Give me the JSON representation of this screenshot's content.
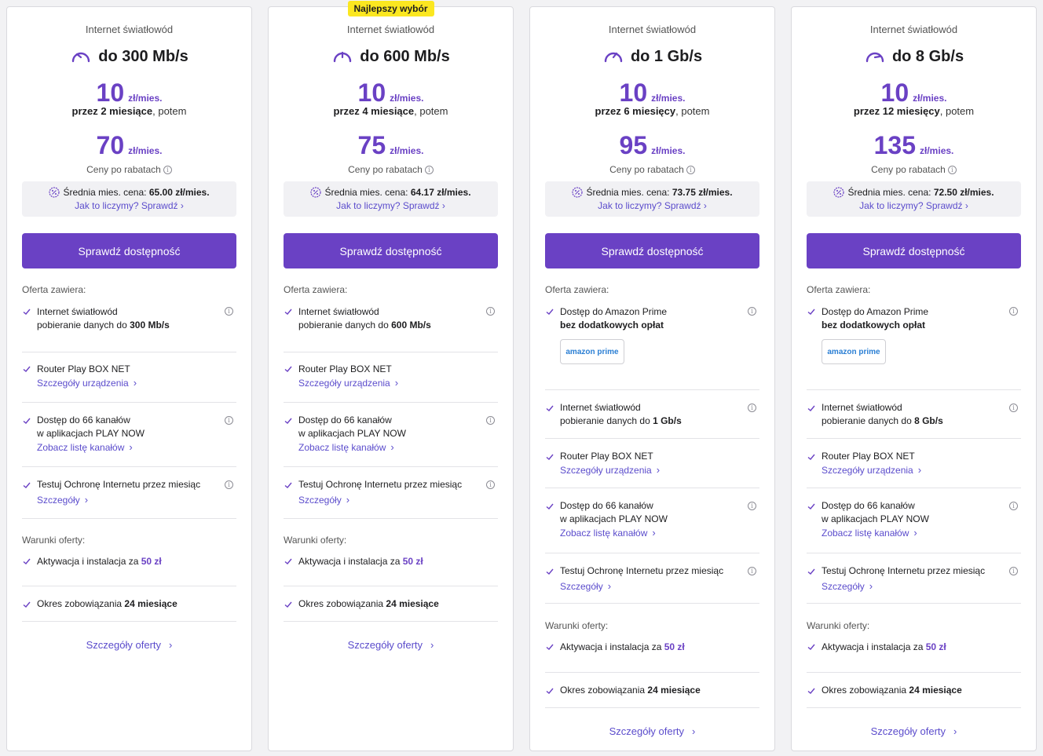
{
  "colors": {
    "accent": "#6a41c4",
    "link": "#5b4ccc",
    "badge": "#fbe720"
  },
  "plans": [
    {
      "badge": "",
      "type": "Internet światłowód",
      "speed": "do 300 Mb/s",
      "promo_price": "10",
      "unit": "zł/mies.",
      "period_bold": "przez 2 miesiące",
      "period_rest": ", potem",
      "regular_price": "70",
      "discount_note": "Ceny po rabatach",
      "avg_label": "Średnia mies. cena:",
      "avg_value": "65.00 zł/mies.",
      "avg_link": "Jak to liczymy? Sprawdź ›",
      "cta": "Sprawdź dostępność",
      "offer_title": "Oferta zawiera:",
      "amazon": false,
      "amazon_title": "",
      "amazon_sub": "",
      "fiber_title": "Internet światłowód",
      "fiber_sub_prefix": "pobieranie danych do ",
      "fiber_sub_bold": "300 Mb/s",
      "router_title": "Router Play BOX NET",
      "router_link": "Szczegóły urządzenia",
      "channels_title1": "Dostęp do 66 kanałów",
      "channels_title2": "w aplikacjach PLAY NOW",
      "channels_link": "Zobacz listę kanałów",
      "protect_title": "Testuj Ochronę Internetu przez miesiąc",
      "protect_link": "Szczegóły",
      "terms_title": "Warunki oferty:",
      "activation_prefix": "Aktywacja i instalacja za ",
      "activation_value": "50 zł",
      "commit_prefix": "Okres zobowiązania ",
      "commit_value": "24 miesiące",
      "details": "Szczegóły oferty"
    },
    {
      "badge": "Najlepszy wybór",
      "type": "Internet światłowód",
      "speed": "do 600 Mb/s",
      "promo_price": "10",
      "unit": "zł/mies.",
      "period_bold": "przez 4 miesiące",
      "period_rest": ", potem",
      "regular_price": "75",
      "discount_note": "Ceny po rabatach",
      "avg_label": "Średnia mies. cena:",
      "avg_value": "64.17 zł/mies.",
      "avg_link": "Jak to liczymy? Sprawdź ›",
      "cta": "Sprawdź dostępność",
      "offer_title": "Oferta zawiera:",
      "amazon": false,
      "amazon_title": "",
      "amazon_sub": "",
      "fiber_title": "Internet światłowód",
      "fiber_sub_prefix": "pobieranie danych do ",
      "fiber_sub_bold": "600 Mb/s",
      "router_title": "Router Play BOX NET",
      "router_link": "Szczegóły urządzenia",
      "channels_title1": "Dostęp do 66 kanałów",
      "channels_title2": "w aplikacjach PLAY NOW",
      "channels_link": "Zobacz listę kanałów",
      "protect_title": "Testuj Ochronę Internetu przez miesiąc",
      "protect_link": "Szczegóły",
      "terms_title": "Warunki oferty:",
      "activation_prefix": "Aktywacja i instalacja za ",
      "activation_value": "50 zł",
      "commit_prefix": "Okres zobowiązania ",
      "commit_value": "24 miesiące",
      "details": "Szczegóły oferty"
    },
    {
      "badge": "",
      "type": "Internet światłowód",
      "speed": "do 1 Gb/s",
      "promo_price": "10",
      "unit": "zł/mies.",
      "period_bold": "przez 6 miesięcy",
      "period_rest": ", potem",
      "regular_price": "95",
      "discount_note": "Ceny po rabatach",
      "avg_label": "Średnia mies. cena:",
      "avg_value": "73.75 zł/mies.",
      "avg_link": "Jak to liczymy? Sprawdź ›",
      "cta": "Sprawdź dostępność",
      "offer_title": "Oferta zawiera:",
      "amazon": true,
      "amazon_title": "Dostęp do Amazon Prime",
      "amazon_sub": "bez dodatkowych opłat",
      "fiber_title": "Internet światłowód",
      "fiber_sub_prefix": "pobieranie danych do ",
      "fiber_sub_bold": "1 Gb/s",
      "router_title": "Router Play BOX NET",
      "router_link": "Szczegóły urządzenia",
      "channels_title1": "Dostęp do 66 kanałów",
      "channels_title2": "w aplikacjach PLAY NOW",
      "channels_link": "Zobacz listę kanałów",
      "protect_title": "Testuj Ochronę Internetu przez miesiąc",
      "protect_link": "Szczegóły",
      "terms_title": "Warunki oferty:",
      "activation_prefix": "Aktywacja i instalacja za ",
      "activation_value": "50 zł",
      "commit_prefix": "Okres zobowiązania ",
      "commit_value": "24 miesiące",
      "details": "Szczegóły oferty"
    },
    {
      "badge": "",
      "type": "Internet światłowód",
      "speed": "do 8 Gb/s",
      "promo_price": "10",
      "unit": "zł/mies.",
      "period_bold": "przez 12 miesięcy",
      "period_rest": ", potem",
      "regular_price": "135",
      "discount_note": "Ceny po rabatach",
      "avg_label": "Średnia mies. cena:",
      "avg_value": "72.50 zł/mies.",
      "avg_link": "Jak to liczymy? Sprawdź ›",
      "cta": "Sprawdź dostępność",
      "offer_title": "Oferta zawiera:",
      "amazon": true,
      "amazon_title": "Dostęp do Amazon Prime",
      "amazon_sub": "bez dodatkowych opłat",
      "fiber_title": "Internet światłowód",
      "fiber_sub_prefix": "pobieranie danych do ",
      "fiber_sub_bold": "8 Gb/s",
      "router_title": "Router Play BOX NET",
      "router_link": "Szczegóły urządzenia",
      "channels_title1": "Dostęp do 66 kanałów",
      "channels_title2": "w aplikacjach PLAY NOW",
      "channels_link": "Zobacz listę kanałów",
      "protect_title": "Testuj Ochronę Internetu przez miesiąc",
      "protect_link": "Szczegóły",
      "terms_title": "Warunki oferty:",
      "activation_prefix": "Aktywacja i instalacja za ",
      "activation_value": "50 zł",
      "commit_prefix": "Okres zobowiązania ",
      "commit_value": "24 miesiące",
      "details": "Szczegóły oferty"
    }
  ],
  "icons": {
    "speed": "speedometer-icon",
    "percent": "percent-badge-icon",
    "info": "info-icon",
    "check": "check-icon",
    "chevron": "chevron-right-icon",
    "amazon_logo": "amazon-prime-logo"
  },
  "amazon_logo_text": "amazon prime"
}
